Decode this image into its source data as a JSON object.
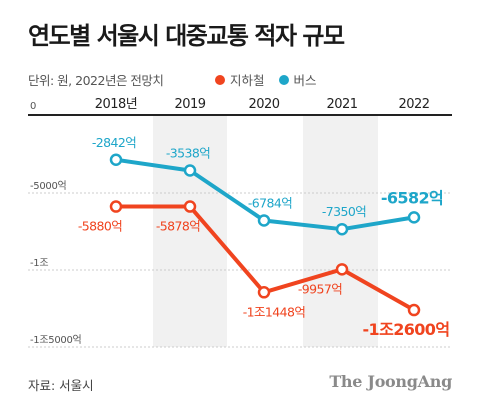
{
  "title": "연도별 서울시 대중교통 적자 규모",
  "subtitle": "단위: 원, 2022년은 전망치",
  "legend": [
    {
      "name": "지하철",
      "color": "#f0441f"
    },
    {
      "name": "버스",
      "color": "#1ea6c9"
    }
  ],
  "source": "자료: 서울시",
  "brand": "The JoongAng",
  "colors": {
    "subway": "#f0441f",
    "bus": "#1ea6c9"
  },
  "chart_data": {
    "type": "line",
    "categories": [
      "2018년",
      "2019",
      "2020",
      "2021",
      "2022"
    ],
    "ylim": [
      -15000,
      0
    ],
    "yticks": [
      {
        "value": 0,
        "label": "0"
      },
      {
        "value": -5000,
        "label": "-5000억"
      },
      {
        "value": -10000,
        "label": "-1조"
      },
      {
        "value": -15000,
        "label": "-1조5000억"
      }
    ],
    "series": [
      {
        "name": "버스",
        "values": [
          -2842,
          -3538,
          -6784,
          -7350,
          -6582
        ],
        "labels": [
          "-2842억",
          "-3538억",
          "-6784억",
          "-7350억",
          "-6582억"
        ]
      },
      {
        "name": "지하철",
        "values": [
          -5880,
          -5878,
          -11448,
          -9957,
          -12600
        ],
        "labels": [
          "-5880억",
          "-5878억",
          "-1조1448억",
          "-9957억",
          "-1조2600억"
        ]
      }
    ]
  }
}
